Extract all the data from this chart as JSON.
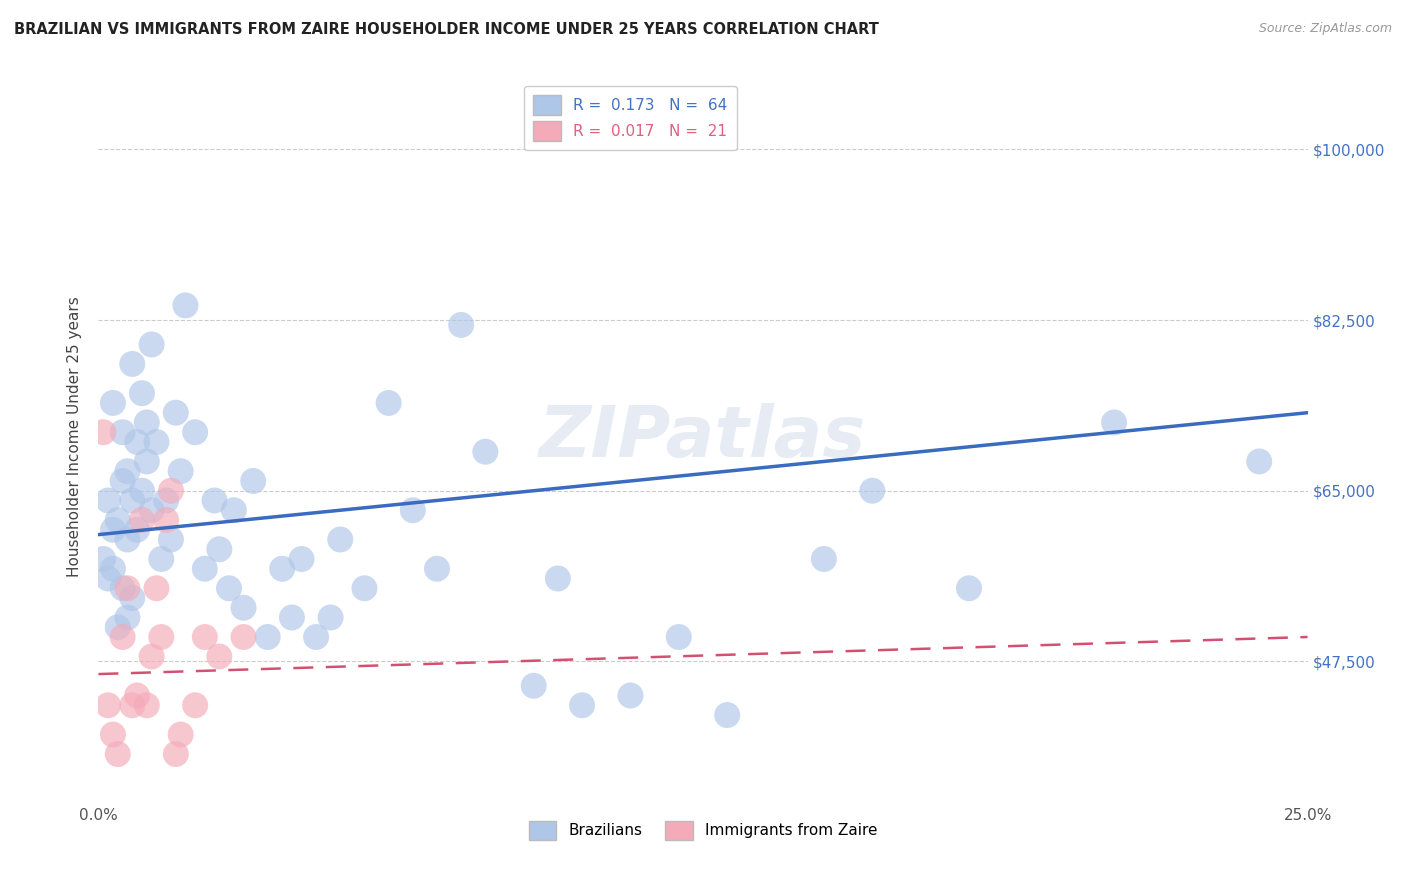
{
  "title": "BRAZILIAN VS IMMIGRANTS FROM ZAIRE HOUSEHOLDER INCOME UNDER 25 YEARS CORRELATION CHART",
  "source": "Source: ZipAtlas.com",
  "ylabel": "Householder Income Under 25 years",
  "xlim": [
    0.0,
    0.25
  ],
  "ylim": [
    33000,
    108000
  ],
  "xtick_labels": [
    "0.0%",
    "",
    "",
    "",
    "",
    "25.0%"
  ],
  "xtick_values": [
    0.0,
    0.05,
    0.1,
    0.15,
    0.2,
    0.25
  ],
  "ytick_labels": [
    "$47,500",
    "$65,000",
    "$82,500",
    "$100,000"
  ],
  "ytick_values": [
    47500,
    65000,
    82500,
    100000
  ],
  "watermark": "ZIPatlas",
  "r_brazilian": 0.173,
  "n_brazilian": 64,
  "r_zaire": 0.017,
  "n_zaire": 21,
  "brazilian_color": "#aec6e8",
  "zaire_color": "#f4aab8",
  "regression_blue": "#3a6bbf",
  "regression_pink": "#d45070",
  "background_color": "#ffffff",
  "grid_color": "#cccccc",
  "legend_text_blue": "#4472c4",
  "legend_text_pink": "#e06080",
  "brazilians_x": [
    0.001,
    0.002,
    0.002,
    0.003,
    0.003,
    0.003,
    0.004,
    0.004,
    0.005,
    0.005,
    0.005,
    0.006,
    0.006,
    0.006,
    0.007,
    0.007,
    0.007,
    0.008,
    0.008,
    0.009,
    0.009,
    0.01,
    0.01,
    0.011,
    0.011,
    0.012,
    0.013,
    0.014,
    0.015,
    0.016,
    0.017,
    0.018,
    0.02,
    0.022,
    0.024,
    0.025,
    0.027,
    0.028,
    0.03,
    0.032,
    0.035,
    0.038,
    0.04,
    0.042,
    0.045,
    0.048,
    0.05,
    0.055,
    0.06,
    0.065,
    0.07,
    0.075,
    0.08,
    0.09,
    0.095,
    0.1,
    0.11,
    0.12,
    0.13,
    0.15,
    0.16,
    0.18,
    0.21,
    0.24
  ],
  "brazilians_y": [
    58000,
    64000,
    56000,
    61000,
    74000,
    57000,
    62000,
    51000,
    66000,
    71000,
    55000,
    67000,
    52000,
    60000,
    64000,
    78000,
    54000,
    61000,
    70000,
    65000,
    75000,
    72000,
    68000,
    63000,
    80000,
    70000,
    58000,
    64000,
    60000,
    73000,
    67000,
    84000,
    71000,
    57000,
    64000,
    59000,
    55000,
    63000,
    53000,
    66000,
    50000,
    57000,
    52000,
    58000,
    50000,
    52000,
    60000,
    55000,
    74000,
    63000,
    57000,
    82000,
    69000,
    45000,
    56000,
    43000,
    44000,
    50000,
    42000,
    58000,
    65000,
    55000,
    72000,
    68000
  ],
  "zaire_x": [
    0.001,
    0.002,
    0.003,
    0.004,
    0.005,
    0.006,
    0.007,
    0.008,
    0.009,
    0.01,
    0.011,
    0.012,
    0.013,
    0.014,
    0.015,
    0.016,
    0.017,
    0.02,
    0.022,
    0.025,
    0.03
  ],
  "zaire_y": [
    71000,
    43000,
    40000,
    38000,
    50000,
    55000,
    43000,
    44000,
    62000,
    43000,
    48000,
    55000,
    50000,
    62000,
    65000,
    38000,
    40000,
    43000,
    50000,
    48000,
    50000
  ]
}
